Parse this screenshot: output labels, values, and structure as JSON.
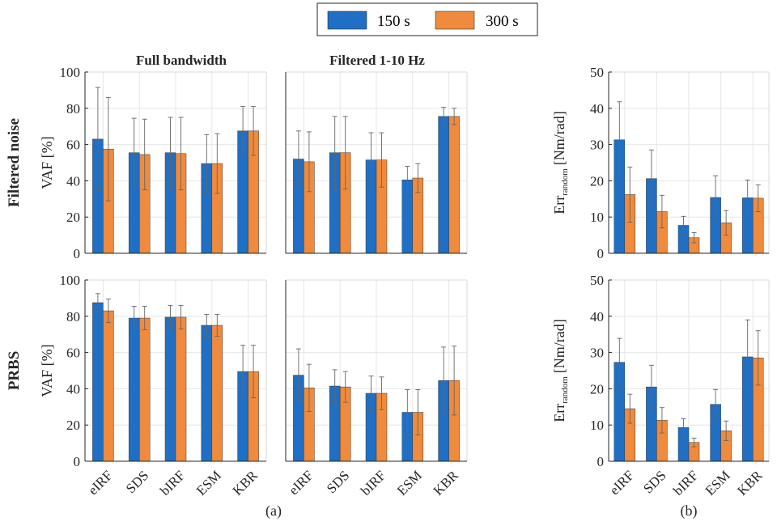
{
  "colors": {
    "s150": "#1f6fc5",
    "s300": "#f08a3c"
  },
  "legend": [
    {
      "label": "150 s"
    },
    {
      "label": "300 s"
    }
  ],
  "col_titles": [
    "Full bandwidth",
    "Filtered 1-10 Hz"
  ],
  "row_titles": [
    "Filtered noise",
    "PRBS"
  ],
  "ylabels": {
    "vaf": "VAF [%]",
    "err_main": "Err",
    "err_sub": "random",
    "err_unit": "[Nm/rad]"
  },
  "captions": {
    "a": "(a)",
    "b": "(b)"
  },
  "chart_data": [
    {
      "type": "bar",
      "panel": "noise-full",
      "row": "Filtered noise",
      "column": "Full bandwidth",
      "categories": [
        "eIRF",
        "SDS",
        "bIRF",
        "ESM",
        "KBR"
      ],
      "ylim": [
        0,
        100
      ],
      "yticks": [
        0,
        20,
        40,
        60,
        80,
        100
      ],
      "ylabel": "VAF [%]",
      "grid": true,
      "series": [
        {
          "name": "150 s",
          "values": [
            63,
            55.5,
            55.5,
            49.5,
            67.5
          ],
          "err_upper": [
            91.5,
            74.5,
            75,
            65.5,
            81
          ]
        },
        {
          "name": "300 s",
          "values": [
            57.5,
            54.5,
            55,
            49.5,
            67.5
          ],
          "err_upper": [
            86,
            74,
            75,
            66,
            81
          ]
        }
      ]
    },
    {
      "type": "bar",
      "panel": "noise-filt",
      "row": "Filtered noise",
      "column": "Filtered 1-10 Hz",
      "categories": [
        "eIRF",
        "SDS",
        "bIRF",
        "ESM",
        "KBR"
      ],
      "ylim": [
        0,
        100
      ],
      "yticks": [
        0,
        20,
        40,
        60,
        80,
        100
      ],
      "grid": true,
      "series": [
        {
          "name": "150 s",
          "values": [
            52,
            55.5,
            51.5,
            40.5,
            75.5
          ],
          "err_upper": [
            67.5,
            75.5,
            66.5,
            48,
            80.5
          ]
        },
        {
          "name": "300 s",
          "values": [
            50.5,
            55.5,
            51.5,
            41.5,
            75.5
          ],
          "err_upper": [
            67,
            75.5,
            66.5,
            49.5,
            80
          ]
        }
      ]
    },
    {
      "type": "bar",
      "panel": "noise-err",
      "row": "Filtered noise",
      "column": "Err",
      "categories": [
        "eIRF",
        "SDS",
        "bIRF",
        "ESM",
        "KBR"
      ],
      "ylim": [
        0,
        50
      ],
      "yticks": [
        0,
        10,
        20,
        30,
        40,
        50
      ],
      "ylabel": "Err random [Nm/rad]",
      "grid": true,
      "series": [
        {
          "name": "150 s",
          "values": [
            31.3,
            20.6,
            7.7,
            15.4,
            15.3
          ],
          "err_upper": [
            41.8,
            28.5,
            10.2,
            21.4,
            20.2
          ]
        },
        {
          "name": "300 s",
          "values": [
            16.2,
            11.5,
            4.3,
            8.4,
            15.2
          ],
          "err_upper": [
            23.8,
            16,
            5.7,
            11.8,
            18.9
          ]
        }
      ]
    },
    {
      "type": "bar",
      "panel": "prbs-full",
      "row": "PRBS",
      "column": "Full bandwidth",
      "categories": [
        "eIRF",
        "SDS",
        "bIRF",
        "ESM",
        "KBR"
      ],
      "ylim": [
        0,
        100
      ],
      "yticks": [
        0,
        20,
        40,
        60,
        80,
        100
      ],
      "ylabel": "VAF [%]",
      "grid": true,
      "series": [
        {
          "name": "150 s",
          "values": [
            87.5,
            79,
            79.5,
            75,
            49.5
          ],
          "err_upper": [
            92.5,
            85.5,
            86,
            81,
            64
          ]
        },
        {
          "name": "300 s",
          "values": [
            83,
            79,
            79.5,
            75,
            49.5
          ],
          "err_upper": [
            89.5,
            85.5,
            86,
            81,
            64
          ]
        }
      ]
    },
    {
      "type": "bar",
      "panel": "prbs-filt",
      "row": "PRBS",
      "column": "Filtered 1-10 Hz",
      "categories": [
        "eIRF",
        "SDS",
        "bIRF",
        "ESM",
        "KBR"
      ],
      "ylim": [
        0,
        100
      ],
      "yticks": [
        0,
        20,
        40,
        60,
        80,
        100
      ],
      "grid": true,
      "series": [
        {
          "name": "150 s",
          "values": [
            47.5,
            41.5,
            37.5,
            27,
            44.5
          ],
          "err_upper": [
            62,
            50.5,
            47,
            39.5,
            63
          ]
        },
        {
          "name": "300 s",
          "values": [
            40.5,
            41,
            37.5,
            27,
            44.5
          ],
          "err_upper": [
            53.5,
            49.5,
            46.5,
            39.5,
            63.5
          ]
        }
      ]
    },
    {
      "type": "bar",
      "panel": "prbs-err",
      "row": "PRBS",
      "column": "Err",
      "categories": [
        "eIRF",
        "SDS",
        "bIRF",
        "ESM",
        "KBR"
      ],
      "ylim": [
        0,
        50
      ],
      "yticks": [
        0,
        10,
        20,
        30,
        40,
        50
      ],
      "ylabel": "Err random [Nm/rad]",
      "grid": true,
      "series": [
        {
          "name": "150 s",
          "values": [
            27.3,
            20.5,
            9.3,
            15.7,
            28.8
          ],
          "err_upper": [
            33.9,
            26.5,
            11.7,
            19.8,
            39
          ]
        },
        {
          "name": "300 s",
          "values": [
            14.5,
            11.3,
            5.2,
            8.4,
            28.5
          ],
          "err_upper": [
            18.5,
            14.8,
            6.4,
            11.1,
            36
          ]
        }
      ]
    }
  ]
}
